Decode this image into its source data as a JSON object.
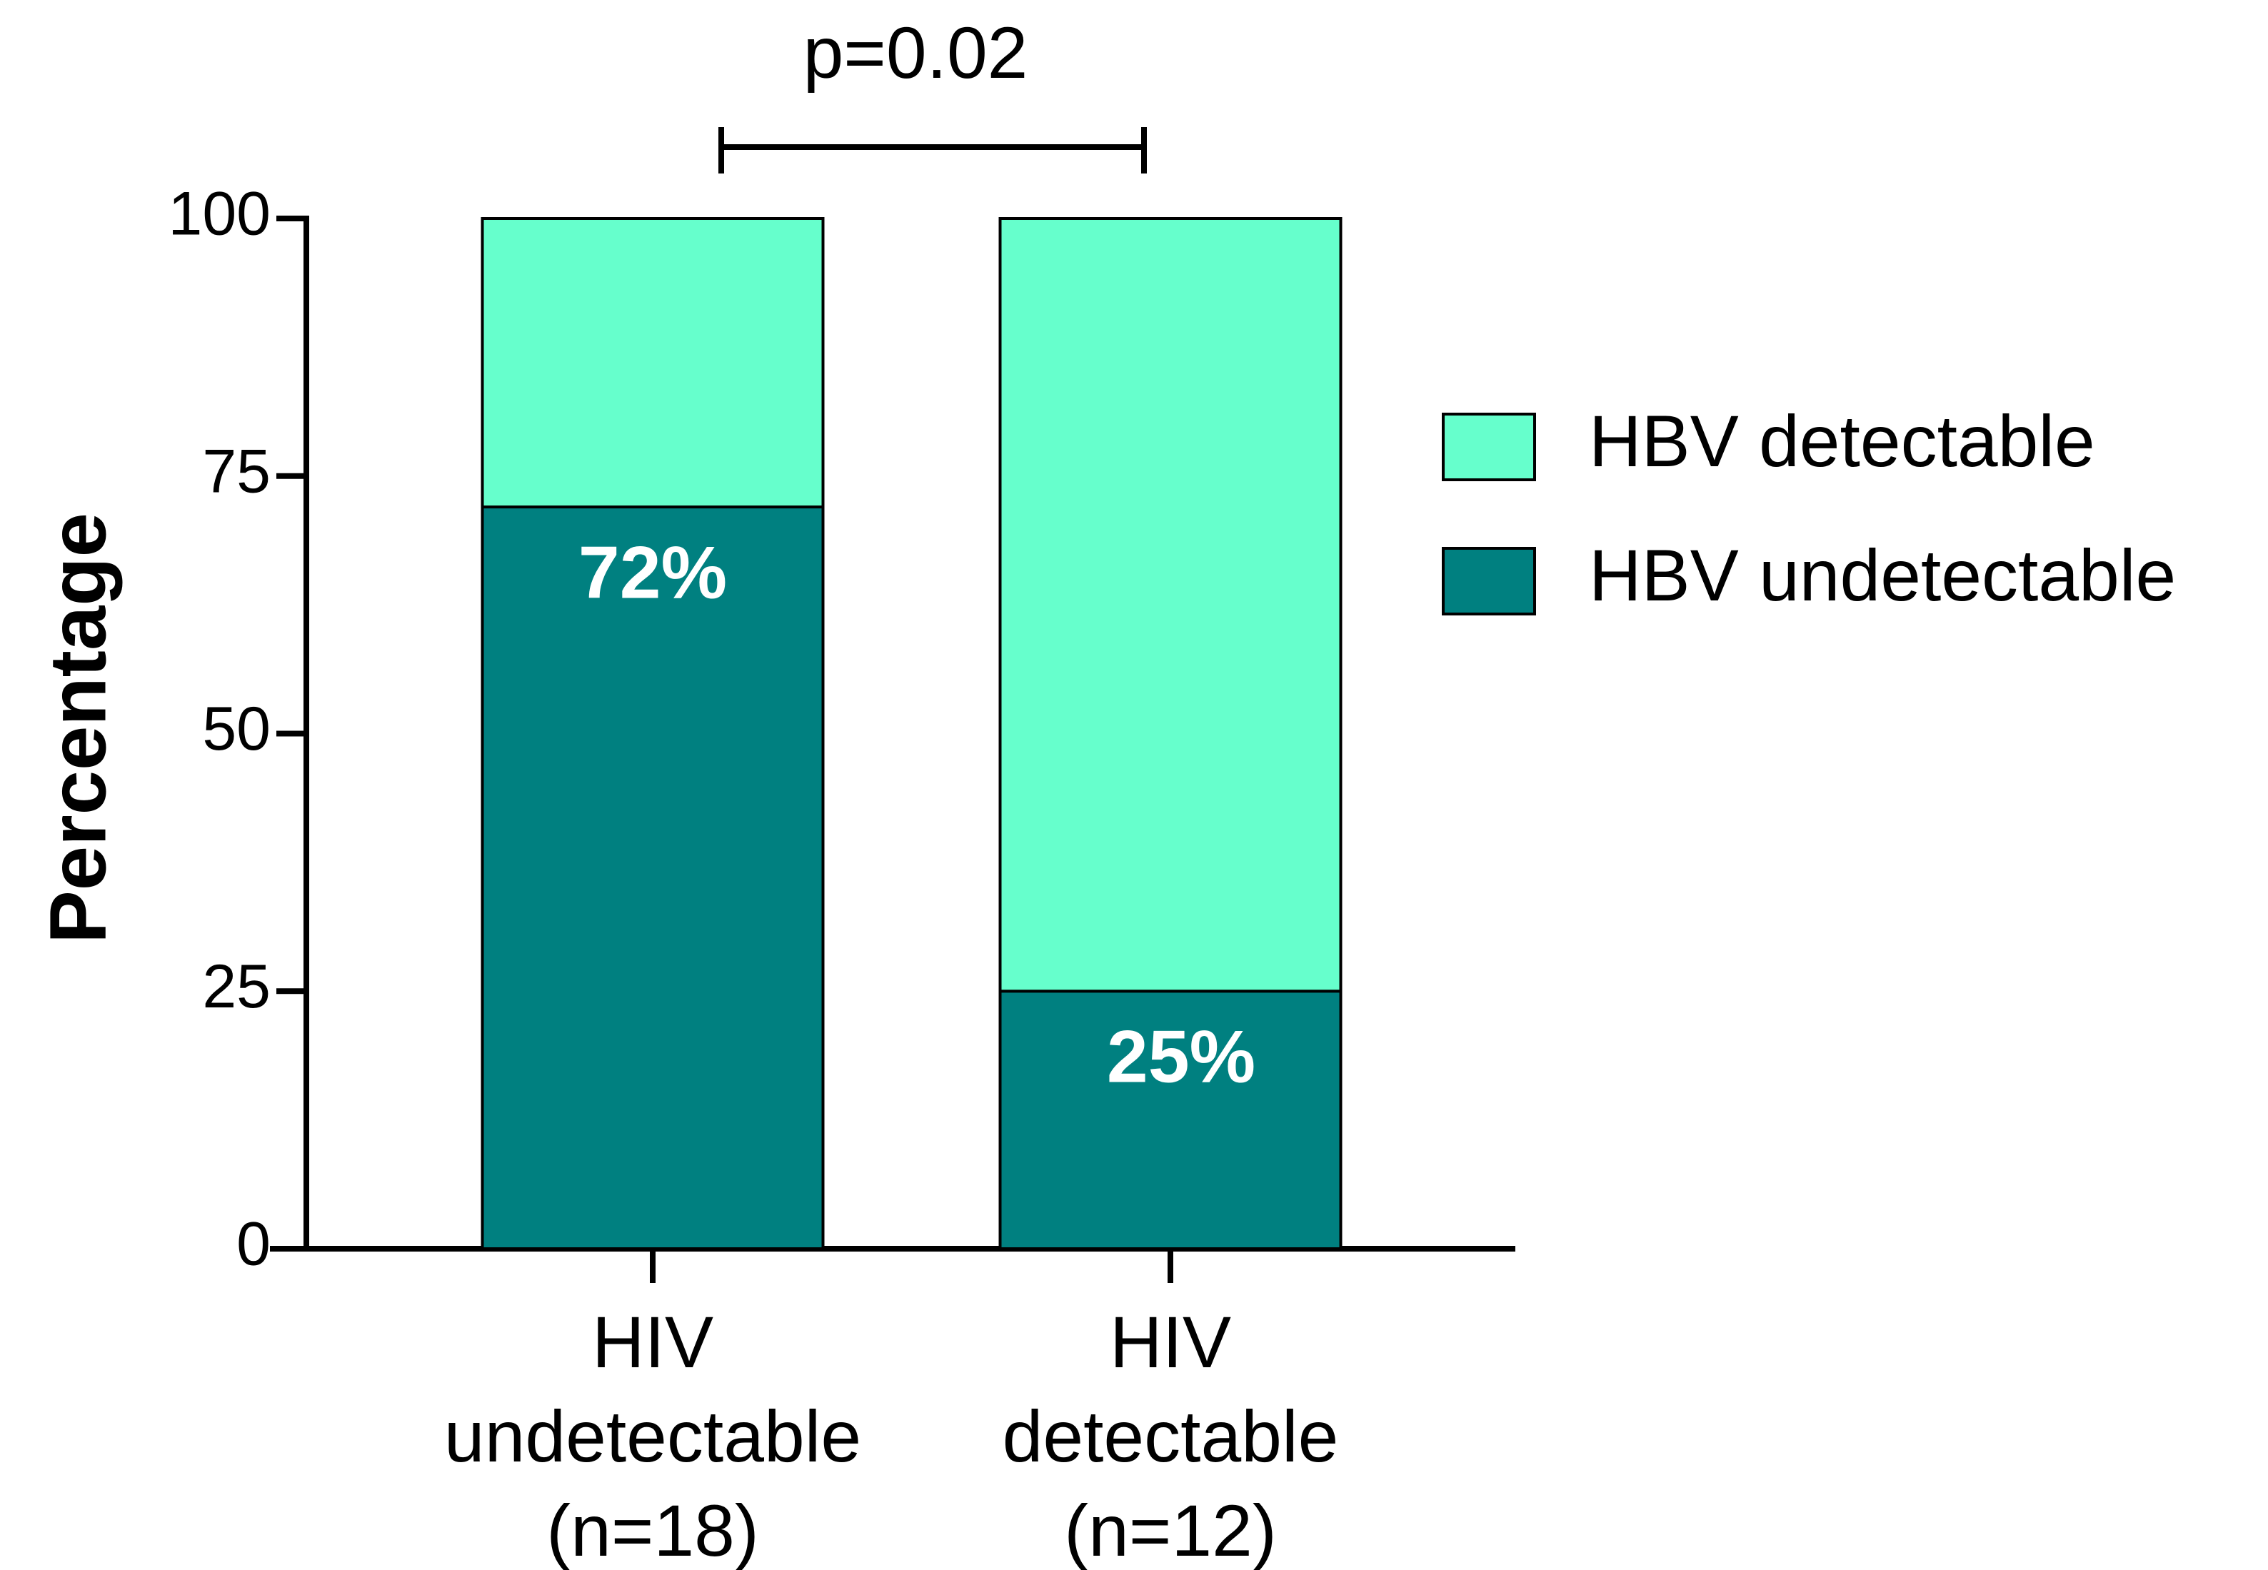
{
  "chart_data": {
    "type": "stacked_bar",
    "annotation": "p=0.02",
    "ylabel": "Percentage",
    "categories": [
      "HIV\nundetectable\n(n=18)",
      "HIV\ndetectable\n(n=12)"
    ],
    "series": [
      {
        "name": "HBV undetectable",
        "color": "#008080",
        "values": [
          72,
          25
        ],
        "value_labels": [
          "72%",
          "25%"
        ]
      },
      {
        "name": "HBV detectable",
        "color": "#66ffcc",
        "values": [
          28,
          75
        ]
      }
    ],
    "ylim": [
      0,
      100
    ],
    "yticks": [
      0,
      25,
      50,
      75,
      100
    ]
  }
}
